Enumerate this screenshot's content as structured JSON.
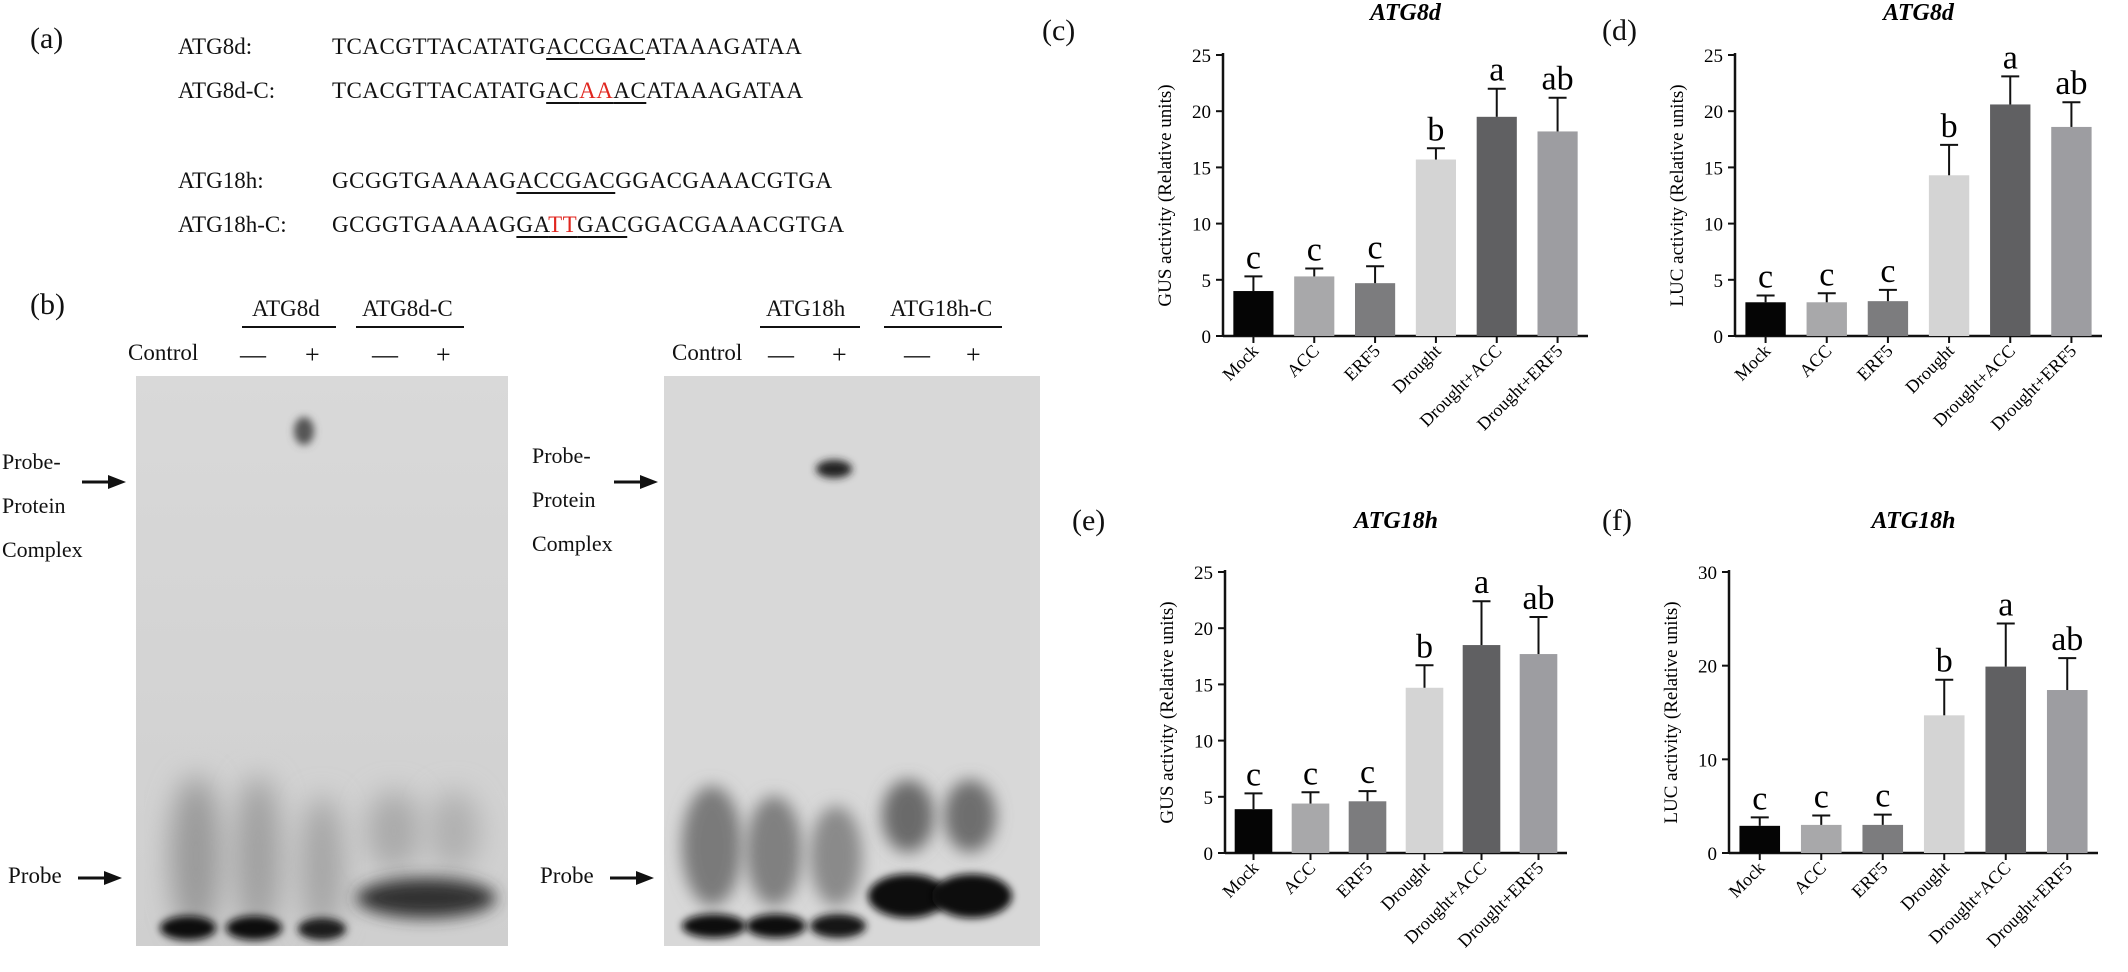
{
  "panel_a": {
    "label": "(a)",
    "sequences": [
      {
        "name": "ATG8d:",
        "pre": "TCACGTTACATATG",
        "mid": [
          {
            "t": "ACCGAC",
            "red": false
          }
        ],
        "post": "ATAAAGATAA"
      },
      {
        "name": "ATG8d-C:",
        "pre": "TCACGTTACATATG",
        "mid": [
          {
            "t": "AC",
            "red": false
          },
          {
            "t": "AA",
            "red": true
          },
          {
            "t": "AC",
            "red": false
          }
        ],
        "post": "ATAAAGATAA"
      },
      {
        "name": "ATG18h:",
        "pre": "GCGGTGAAAAG",
        "mid": [
          {
            "t": "ACCGAC",
            "red": false
          }
        ],
        "post": "GGACGAAACGTGA"
      },
      {
        "name": "ATG18h-C:",
        "pre": "GCGGTGAAAAG",
        "mid": [
          {
            "t": "GA",
            "red": false
          },
          {
            "t": "TT",
            "red": true
          },
          {
            "t": "GAC",
            "red": false
          }
        ],
        "post": "GGACGAAACGTGA"
      }
    ]
  },
  "panel_b": {
    "label": "(b)",
    "left": {
      "group1": "ATG8d",
      "group2": "ATG8d-C",
      "control": "Control",
      "minus": "—",
      "plus": "+"
    },
    "right": {
      "group1": "ATG18h",
      "group2": "ATG18h-C",
      "control": "Control",
      "minus": "—",
      "plus": "+"
    },
    "complex_label": [
      "Probe-",
      "Protein",
      "Complex"
    ],
    "probe_label": "Probe"
  },
  "colors": {
    "Mock": "#050505",
    "ACC": "#a8a8aa",
    "ERF5": "#7c7c7e",
    "Drought": "#d4d4d4",
    "Drought+ACC": "#606062",
    "Drought+ERF5": "#9d9da1"
  },
  "chart_data": [
    {
      "panel": "(c)",
      "type": "bar",
      "title": "ATG8d",
      "ylabel": "GUS activity (Relative units)",
      "ylim": [
        0,
        25
      ],
      "yticks": [
        0,
        5,
        10,
        15,
        20,
        25
      ],
      "categories": [
        "Mock",
        "ACC",
        "ERF5",
        "Drought",
        "Drought+ACC",
        "Drought+ERF5"
      ],
      "values": [
        4.0,
        5.3,
        4.7,
        15.7,
        19.5,
        18.2
      ],
      "errors": [
        1.3,
        0.7,
        1.5,
        1.0,
        2.5,
        3.0
      ],
      "letters": [
        "c",
        "c",
        "c",
        "b",
        "a",
        "ab"
      ]
    },
    {
      "panel": "(d)",
      "type": "bar",
      "title": "ATG8d",
      "ylabel": "LUC activity (Relative units)",
      "ylim": [
        0,
        25
      ],
      "yticks": [
        0,
        5,
        10,
        15,
        20,
        25
      ],
      "categories": [
        "Mock",
        "ACC",
        "ERF5",
        "Drought",
        "Drought+ACC",
        "Drought+ERF5"
      ],
      "values": [
        3.0,
        3.0,
        3.1,
        14.3,
        20.6,
        18.6
      ],
      "errors": [
        0.6,
        0.8,
        1.0,
        2.7,
        2.5,
        2.2
      ],
      "letters": [
        "c",
        "c",
        "c",
        "b",
        "a",
        "ab"
      ]
    },
    {
      "panel": "(e)",
      "type": "bar",
      "title": "ATG18h",
      "ylabel": "GUS activity (Relative units)",
      "ylim": [
        0,
        25
      ],
      "yticks": [
        0,
        5,
        10,
        15,
        20,
        25
      ],
      "categories": [
        "Mock",
        "ACC",
        "ERF5",
        "Drought",
        "Drought+ACC",
        "Drought+ERF5"
      ],
      "values": [
        3.9,
        4.4,
        4.6,
        14.7,
        18.5,
        17.7
      ],
      "errors": [
        1.4,
        1.0,
        0.9,
        2.0,
        3.9,
        3.3
      ],
      "letters": [
        "c",
        "c",
        "c",
        "b",
        "a",
        "ab"
      ]
    },
    {
      "panel": "(f)",
      "type": "bar",
      "title": "ATG18h",
      "ylabel": "LUC activity (Relative units)",
      "ylim": [
        0,
        30
      ],
      "yticks": [
        0,
        10,
        20,
        30
      ],
      "categories": [
        "Mock",
        "ACC",
        "ERF5",
        "Drought",
        "Drought+ACC",
        "Drought+ERF5"
      ],
      "values": [
        2.9,
        3.0,
        3.0,
        14.7,
        19.9,
        17.4
      ],
      "errors": [
        0.9,
        1.0,
        1.1,
        3.8,
        4.6,
        3.4
      ],
      "letters": [
        "c",
        "c",
        "c",
        "b",
        "a",
        "ab"
      ]
    }
  ]
}
